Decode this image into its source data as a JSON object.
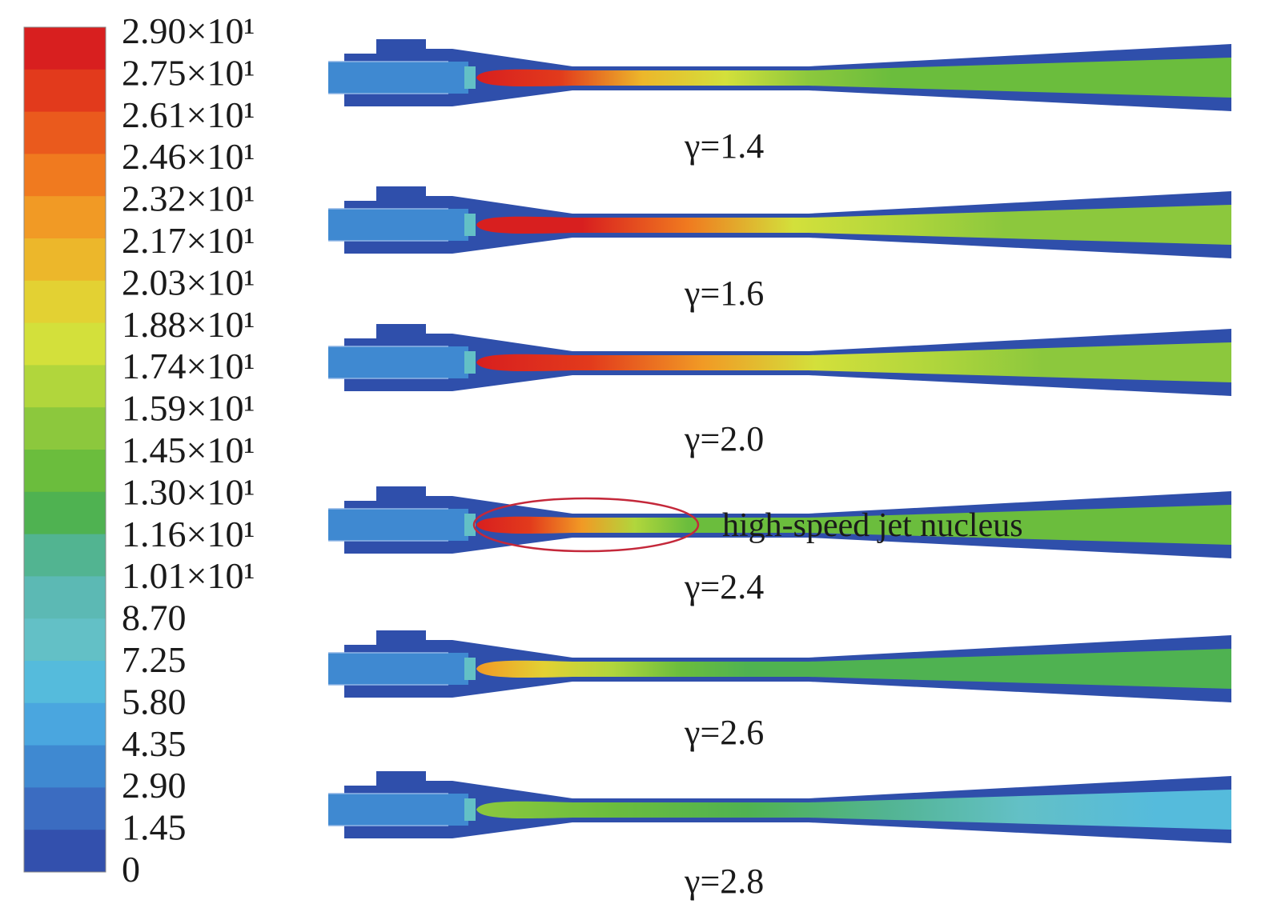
{
  "colorbar": {
    "labels": [
      "2.90×10¹",
      "2.75×10¹",
      "2.61×10¹",
      "2.46×10¹",
      "2.32×10¹",
      "2.17×10¹",
      "2.03×10¹",
      "1.88×10¹",
      "1.74×10¹",
      "1.59×10¹",
      "1.45×10¹",
      "1.30×10¹",
      "1.16×10¹",
      "1.01×10¹",
      "8.70",
      "7.25",
      "5.80",
      "4.35",
      "2.90",
      "1.45",
      "0"
    ],
    "colors_top_to_bottom": [
      "#d81f1f",
      "#e23a1c",
      "#ea5a1d",
      "#f07a1f",
      "#f19a25",
      "#ecb72b",
      "#e3d133",
      "#d3e03b",
      "#b1d63c",
      "#8cc83d",
      "#6bbd3d",
      "#4fb251",
      "#52b491",
      "#5cb9b4",
      "#63c0c6",
      "#55bbdc",
      "#4aa6df",
      "#3f89d1",
      "#3b6cc1",
      "#3350ad"
    ]
  },
  "cases": [
    {
      "caption": "γ=1.4",
      "core_colors": [
        "#d81f1f",
        "#e23a1c",
        "#ecb72b",
        "#d3e03b",
        "#8cc83d",
        "#6bbd3d"
      ],
      "core_extent": 0.55,
      "outlet_color": "#6bbd3d",
      "highlight": false
    },
    {
      "caption": "γ=1.6",
      "core_colors": [
        "#d81f1f",
        "#d81f1f",
        "#f07a1f",
        "#d3e03b",
        "#b1d63c",
        "#8cc83d"
      ],
      "core_extent": 0.7,
      "outlet_color": "#8cc83d",
      "highlight": false
    },
    {
      "caption": "γ=2.0",
      "core_colors": [
        "#d81f1f",
        "#e23a1c",
        "#f19a25",
        "#d3e03b",
        "#b1d63c",
        "#8cc83d"
      ],
      "core_extent": 0.75,
      "outlet_color": "#8cc83d",
      "highlight": false
    },
    {
      "caption": "γ=2.4",
      "core_colors": [
        "#d81f1f",
        "#e23a1c",
        "#f19a25",
        "#b1d63c",
        "#6bbd3d",
        "#6bbd3d"
      ],
      "core_extent": 0.35,
      "outlet_color": "#6bbd3d",
      "highlight": true
    },
    {
      "caption": "γ=2.6",
      "core_colors": [
        "#f19a25",
        "#e3d133",
        "#b1d63c",
        "#6bbd3d",
        "#4fb251",
        "#4fb251"
      ],
      "core_extent": 0.45,
      "outlet_color": "#4fb251",
      "highlight": false
    },
    {
      "caption": "γ=2.8",
      "core_colors": [
        "#8cc83d",
        "#6bbd3d",
        "#4fb251",
        "#52b491",
        "#63c0c6",
        "#55bbdc"
      ],
      "core_extent": 0.9,
      "outlet_color": "#55bbdc",
      "highlight": false
    }
  ],
  "annotation": {
    "text": "high-speed jet nucleus",
    "ellipse_color": "#c4283a"
  },
  "colors": {
    "wall": "#2f4fab",
    "inlet": "#3f89d1",
    "background": "#ffffff"
  }
}
